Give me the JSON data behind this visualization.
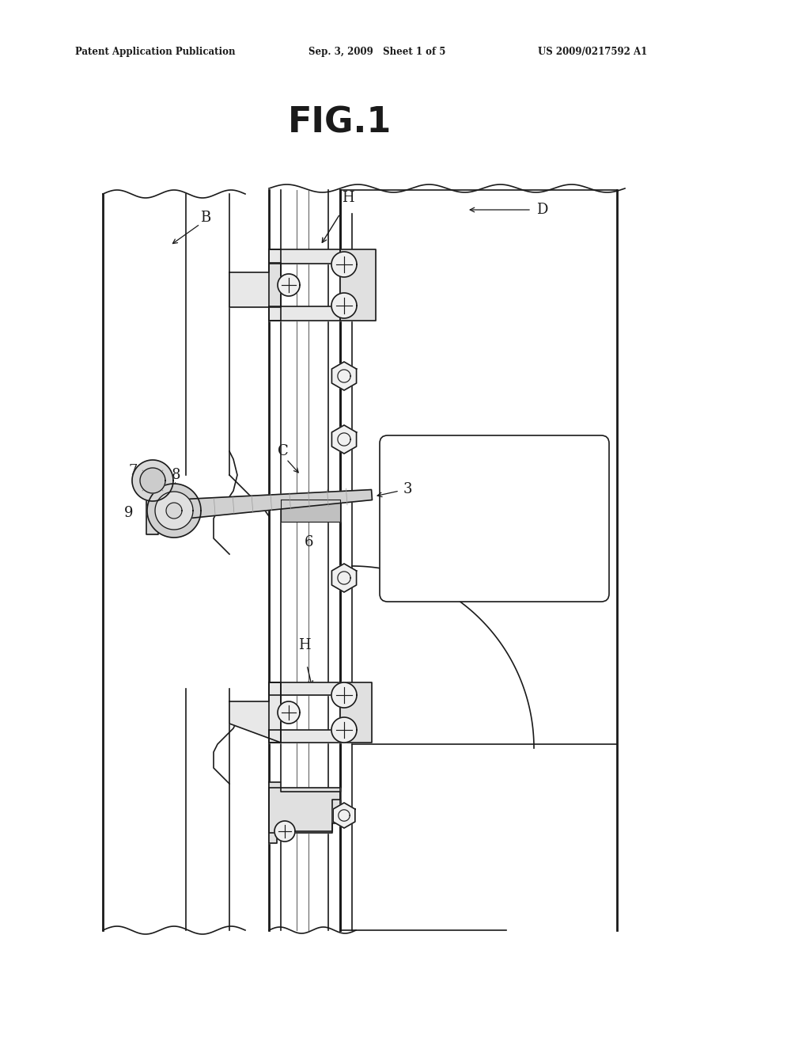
{
  "bg_color": "#ffffff",
  "line_color": "#1a1a1a",
  "header_text": "Patent Application Publication",
  "header_date": "Sep. 3, 2009   Sheet 1 of 5",
  "header_patent": "US 2009/0217592 A1",
  "fig_title": "FIG.1",
  "figsize": [
    10.24,
    13.2
  ],
  "dpi": 100
}
